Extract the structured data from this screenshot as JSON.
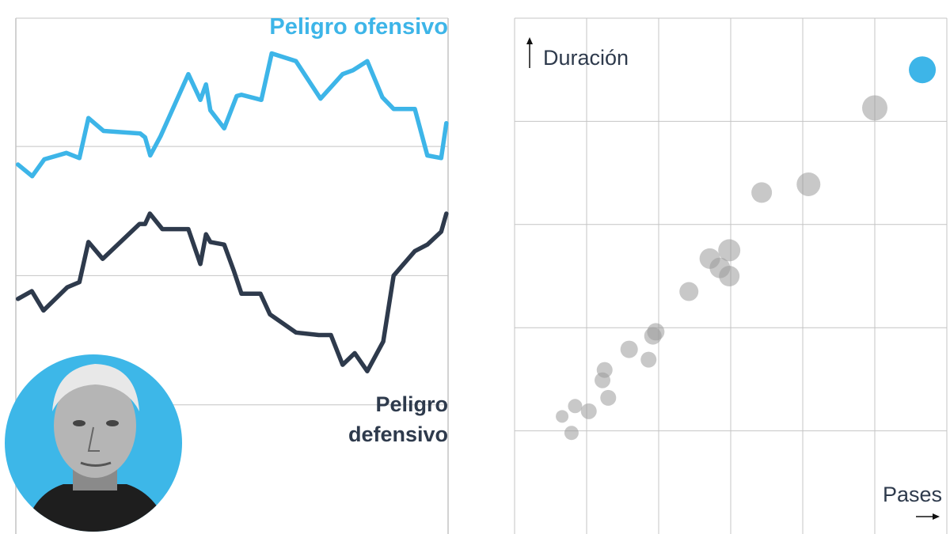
{
  "colors": {
    "offense": "#3db5e8",
    "defense": "#2e3a4c",
    "grid": "#c4c4c4",
    "bubble": "#9a9a9a",
    "highlight": "#3db5e8"
  },
  "chart_data": [
    {
      "type": "line",
      "title": "",
      "xlabel": "",
      "ylabel": "",
      "xlim": [
        0,
        100
      ],
      "ylim": [
        0,
        4
      ],
      "yticks": [
        1,
        2,
        3
      ],
      "grid": true,
      "series": [
        {
          "name": "Peligro ofensivo",
          "x": [
            0.5,
            3.8,
            6.6,
            11.7,
            14.7,
            16.8,
            20.3,
            28.8,
            29.9,
            31.1,
            33.5,
            39.9,
            42.7,
            44,
            45,
            48.2,
            51.1,
            52.2,
            56.8,
            59.2,
            64.8,
            70.5,
            75.6,
            78,
            81.3,
            84.8,
            87.4,
            92.3,
            95.2,
            98.4,
            99.6
          ],
          "y": [
            2.86,
            2.77,
            2.9,
            2.95,
            2.91,
            3.22,
            3.12,
            3.1,
            3.07,
            2.93,
            3.08,
            3.56,
            3.36,
            3.48,
            3.28,
            3.14,
            3.39,
            3.4,
            3.36,
            3.72,
            3.66,
            3.37,
            3.56,
            3.59,
            3.66,
            3.38,
            3.29,
            3.29,
            2.93,
            2.91,
            3.18
          ]
        },
        {
          "name": "Peligro defensivo",
          "x": [
            0.5,
            3.7,
            6.4,
            11.9,
            14.7,
            16.8,
            20.1,
            28.6,
            29.9,
            31,
            33.9,
            39.9,
            42.7,
            44,
            45,
            48.2,
            50.4,
            52.2,
            56.6,
            58.8,
            64.8,
            70.1,
            72.9,
            75.6,
            78.4,
            81.3,
            85,
            87.4,
            92.3,
            95.2,
            98.4,
            99.6
          ],
          "y": [
            1.82,
            1.88,
            1.73,
            1.91,
            1.95,
            2.26,
            2.13,
            2.4,
            2.4,
            2.48,
            2.36,
            2.36,
            2.09,
            2.32,
            2.26,
            2.24,
            2.04,
            1.86,
            1.86,
            1.7,
            1.56,
            1.54,
            1.54,
            1.31,
            1.4,
            1.26,
            1.49,
            2.0,
            2.19,
            2.24,
            2.34,
            2.48
          ]
        }
      ],
      "labels": {
        "offense": "Peligro ofensivo",
        "defense_line1": "Peligro",
        "defense_line2": "defensivo"
      }
    },
    {
      "type": "scatter",
      "xlabel": "Pases",
      "ylabel": "Duración",
      "xlim": [
        0,
        6
      ],
      "ylim": [
        0,
        5
      ],
      "grid": true,
      "points": [
        {
          "x": 5.66,
          "y": 4.5,
          "size": 17,
          "highlight": true
        },
        {
          "x": 5.0,
          "y": 4.13,
          "size": 16
        },
        {
          "x": 3.43,
          "y": 3.31,
          "size": 13
        },
        {
          "x": 4.08,
          "y": 3.39,
          "size": 15
        },
        {
          "x": 2.71,
          "y": 2.67,
          "size": 13
        },
        {
          "x": 2.98,
          "y": 2.75,
          "size": 14
        },
        {
          "x": 2.85,
          "y": 2.58,
          "size": 13
        },
        {
          "x": 2.98,
          "y": 2.5,
          "size": 13
        },
        {
          "x": 2.42,
          "y": 2.35,
          "size": 12
        },
        {
          "x": 1.96,
          "y": 1.96,
          "size": 11
        },
        {
          "x": 1.92,
          "y": 1.92,
          "size": 11
        },
        {
          "x": 1.59,
          "y": 1.79,
          "size": 11
        },
        {
          "x": 1.86,
          "y": 1.69,
          "size": 10
        },
        {
          "x": 1.25,
          "y": 1.59,
          "size": 10
        },
        {
          "x": 1.22,
          "y": 1.49,
          "size": 10
        },
        {
          "x": 1.3,
          "y": 1.32,
          "size": 10
        },
        {
          "x": 0.84,
          "y": 1.24,
          "size": 9
        },
        {
          "x": 1.03,
          "y": 1.19,
          "size": 10
        },
        {
          "x": 0.66,
          "y": 1.14,
          "size": 8
        },
        {
          "x": 0.79,
          "y": 0.98,
          "size": 9
        }
      ]
    }
  ]
}
